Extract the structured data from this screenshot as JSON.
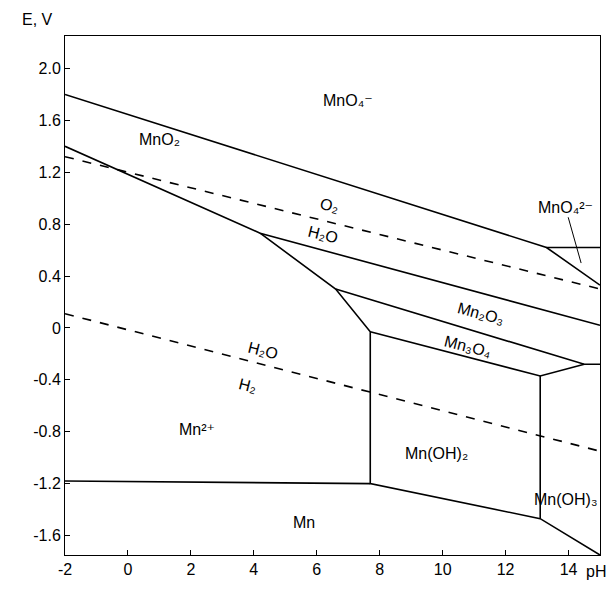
{
  "chart_data": {
    "type": "line",
    "xlabel": "pH",
    "ylabel": "E, V",
    "xlim": [
      -2,
      15
    ],
    "ylim": [
      -1.75,
      2.25
    ],
    "xticks": [
      -2,
      0,
      2,
      4,
      6,
      8,
      10,
      12,
      14
    ],
    "yticks": [
      {
        "value": 2,
        "label": "2.0"
      },
      1.6,
      1.2,
      0.8,
      0.4,
      0,
      -0.4,
      -0.8,
      -1.2,
      -1.6
    ],
    "grid": false,
    "series": [
      {
        "color": "#000000",
        "line_style": "solid",
        "x": [
          -2,
          13.3,
          15
        ],
        "values": [
          1.8,
          0.62,
          0.33
        ]
      },
      {
        "color": "#000000",
        "line_style": "solid",
        "x": [
          13.3,
          15
        ],
        "values": [
          0.62,
          0.62
        ]
      },
      {
        "color": "#000000",
        "line_style": "solid",
        "x": [
          -2,
          4.2,
          15
        ],
        "values": [
          1.4,
          0.73,
          0.02
        ]
      },
      {
        "color": "#000000",
        "line_style": "solid",
        "x": [
          4.2,
          6.6,
          7.7,
          7.7,
          13.1,
          15
        ],
        "values": [
          0.73,
          0.3,
          -0.03,
          -1.2,
          -1.47,
          -1.75
        ]
      },
      {
        "color": "#000000",
        "line_style": "solid",
        "x": [
          6.6,
          14.5,
          15
        ],
        "values": [
          0.3,
          -0.28,
          -0.28
        ]
      },
      {
        "color": "#000000",
        "line_style": "solid",
        "x": [
          7.7,
          13.1,
          14.5
        ],
        "values": [
          -0.03,
          -0.37,
          -0.28
        ]
      },
      {
        "color": "#000000",
        "line_style": "solid",
        "x": [
          13.1,
          13.1
        ],
        "values": [
          -0.37,
          -1.47
        ]
      },
      {
        "color": "#000000",
        "line_style": "solid",
        "x": [
          -2,
          7.7
        ],
        "values": [
          -1.18,
          -1.2
        ]
      },
      {
        "color": "#000000",
        "line_style": "dashed",
        "x": [
          -2,
          15
        ],
        "values": [
          1.32,
          0.3
        ]
      },
      {
        "color": "#000000",
        "line_style": "dashed",
        "x": [
          -2,
          15
        ],
        "values": [
          0.11,
          -0.95
        ]
      }
    ],
    "annotations": [
      {
        "text": "MnO₄⁻",
        "x": 7.0,
        "y": 1.75
      },
      {
        "text": "MnO₂",
        "x": 1.0,
        "y": 1.45
      },
      {
        "text": "O₂",
        "x": 6.4,
        "y": 0.94
      },
      {
        "text": "H₂O",
        "x": 6.2,
        "y": 0.72
      },
      {
        "text": "Mn₂O₃",
        "x": 11.2,
        "y": 0.11
      },
      {
        "text": "Mn₃O₄",
        "x": 10.8,
        "y": -0.14
      },
      {
        "text": "H₂O",
        "x": 4.3,
        "y": -0.17
      },
      {
        "text": "H₂",
        "x": 3.8,
        "y": -0.44
      },
      {
        "text": "Mn²⁺",
        "x": 2.2,
        "y": -0.78
      },
      {
        "text": "Mn(OH)₂",
        "x": 9.8,
        "y": -0.97
      },
      {
        "text": "Mn(OH)₃",
        "x": 13.9,
        "y": -1.32
      },
      {
        "text": "Mn",
        "x": 5.6,
        "y": -1.5
      },
      {
        "text": "MnO₄²⁻",
        "x": 13.9,
        "y": 0.93,
        "arrow_x": 14.4,
        "arrow_y": 0.5
      }
    ]
  }
}
